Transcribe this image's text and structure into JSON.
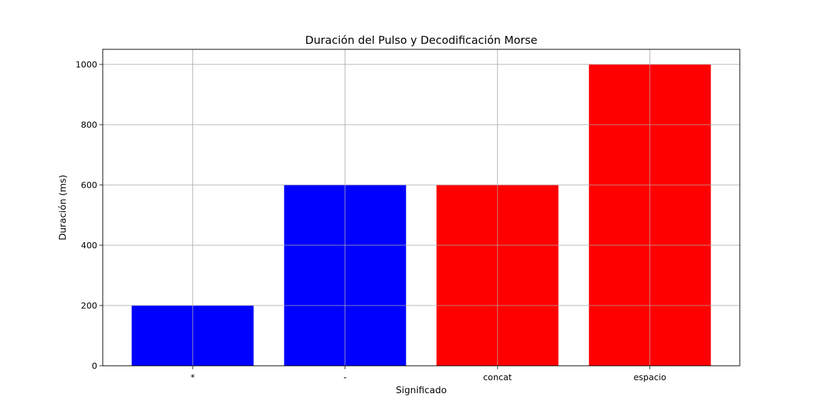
{
  "chart_data": {
    "type": "bar",
    "title": "Duración del Pulso y Decodificación Morse",
    "xlabel": "Significado",
    "ylabel": "Duración (ms)",
    "categories": [
      "*",
      "-",
      "concat",
      "espacio"
    ],
    "values": [
      200,
      600,
      600,
      1000
    ],
    "bar_colors": [
      "#0000ff",
      "#0000ff",
      "#ff0000",
      "#ff0000"
    ],
    "ylim": [
      0,
      1050
    ],
    "yticks": [
      0,
      200,
      400,
      600,
      800,
      1000
    ],
    "grid": true,
    "legend": "none"
  },
  "colors": {
    "grid": "#b0b0b0",
    "axes": "#000000",
    "background": "#ffffff"
  }
}
